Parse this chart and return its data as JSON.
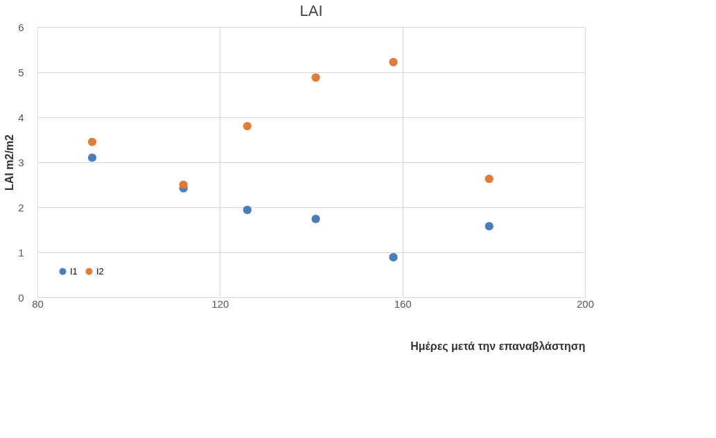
{
  "chart_data": {
    "type": "scatter",
    "title": "LAI",
    "xlabel": "Ημέρες μετά την επαναβλάστηση",
    "ylabel": "LAI  m2/m2",
    "xlim": [
      80,
      200
    ],
    "xticks": [
      80,
      120,
      160,
      200
    ],
    "ylim": [
      0,
      6
    ],
    "yticks": [
      0,
      1,
      2,
      3,
      4,
      5,
      6
    ],
    "grid": true,
    "legend": "bottom left",
    "series": [
      {
        "name": "I1",
        "color": "#4a7ebb",
        "x": [
          92,
          112,
          126,
          141,
          158,
          179
        ],
        "values": [
          3.1,
          2.42,
          1.94,
          1.74,
          0.89,
          1.58
        ]
      },
      {
        "name": "I2",
        "color": "#e07b39",
        "x": [
          92,
          112,
          126,
          141,
          158,
          179
        ],
        "values": [
          3.45,
          2.5,
          3.8,
          4.88,
          5.22,
          2.63
        ]
      }
    ]
  }
}
